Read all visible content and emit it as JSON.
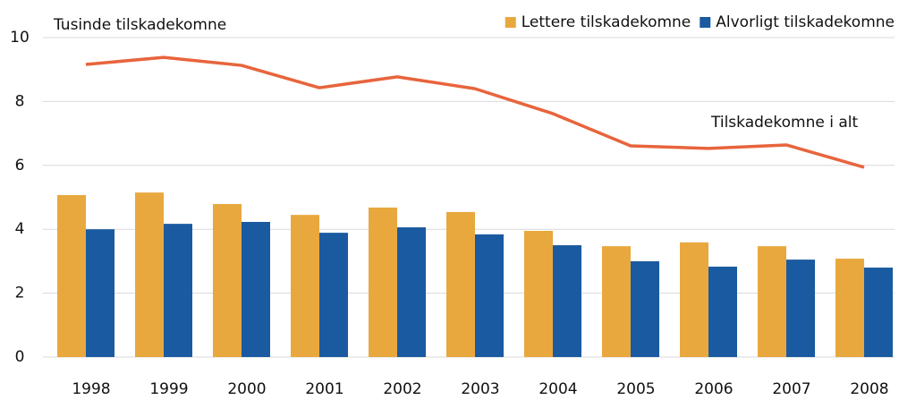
{
  "chart_data": {
    "type": "bar_line",
    "title": "Tusinde tilskadekomne",
    "categories": [
      "1998",
      "1999",
      "2000",
      "2001",
      "2002",
      "2003",
      "2004",
      "2005",
      "2006",
      "2007",
      "2008"
    ],
    "series": [
      {
        "name": "Lettere tilskadekomne",
        "color": "#e8a83e",
        "type": "bar",
        "values": [
          5.07,
          5.15,
          4.79,
          4.45,
          4.68,
          4.54,
          3.95,
          3.47,
          3.59,
          3.47,
          3.08
        ]
      },
      {
        "name": "Alvorligt tilskadekomne",
        "color": "#1a5aa0",
        "type": "bar",
        "values": [
          4.0,
          4.17,
          4.23,
          3.89,
          4.06,
          3.84,
          3.5,
          3.0,
          2.83,
          3.05,
          2.8
        ]
      },
      {
        "name": "Tilskadekomne i alt",
        "color": "#e8643c",
        "type": "line",
        "values": [
          9.16,
          9.38,
          9.13,
          8.43,
          8.77,
          8.4,
          7.62,
          6.61,
          6.53,
          6.64,
          5.94
        ]
      }
    ],
    "ylim": [
      0,
      10
    ],
    "yticks": [
      0,
      2,
      4,
      6,
      8,
      10
    ],
    "grid": true
  }
}
